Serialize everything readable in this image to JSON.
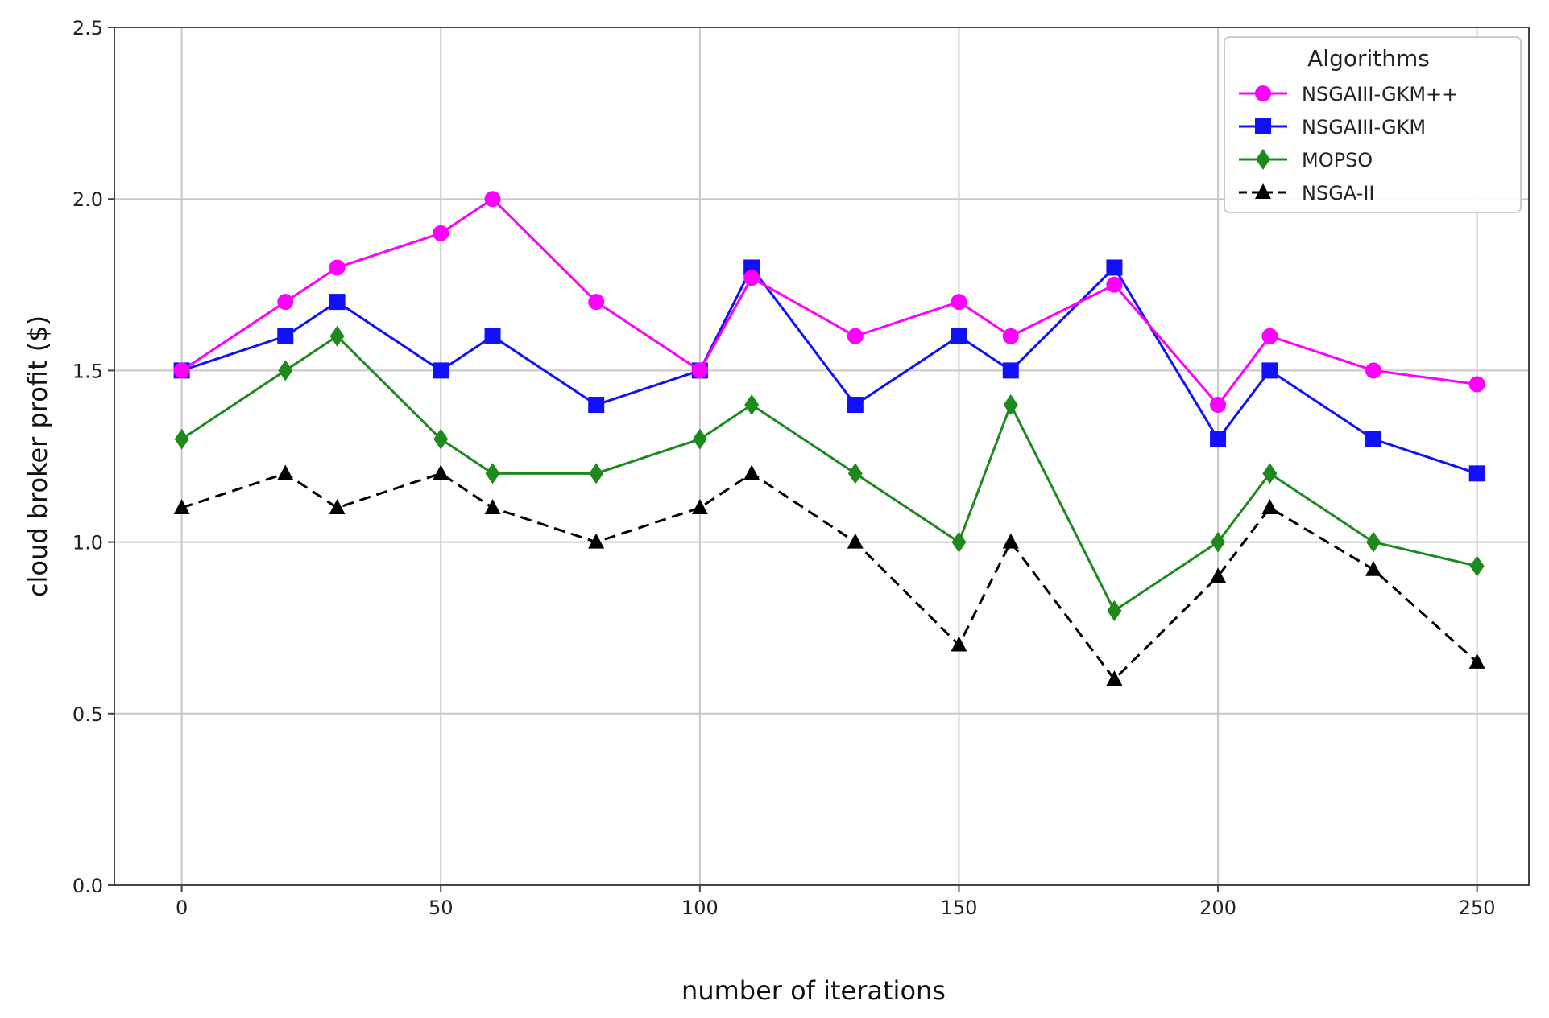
{
  "chart_data": {
    "type": "line",
    "xlabel": "number of iterations",
    "ylabel": "cloud broker profit ($)",
    "xlim": [
      -13,
      260
    ],
    "ylim": [
      0.0,
      2.5
    ],
    "xticks": [
      0,
      50,
      100,
      150,
      200,
      250
    ],
    "yticks": [
      0.0,
      0.5,
      1.0,
      1.5,
      2.0,
      2.5
    ],
    "xtick_labels": [
      "0",
      "50",
      "100",
      "150",
      "200",
      "250"
    ],
    "ytick_labels": [
      "0.0",
      "0.5",
      "1.0",
      "1.5",
      "2.0",
      "2.5"
    ],
    "grid": true,
    "legend": {
      "title": "Algorithms",
      "position": "top-right"
    },
    "x": [
      0,
      20,
      30,
      50,
      60,
      80,
      100,
      110,
      130,
      150,
      160,
      180,
      200,
      210,
      230,
      250
    ],
    "series": [
      {
        "name": "NSGAIII-GKM++",
        "color": "#ff00ff",
        "marker": "circle",
        "dashed": false,
        "values": [
          1.5,
          1.7,
          1.8,
          1.9,
          2.0,
          1.7,
          1.5,
          1.77,
          1.6,
          1.7,
          1.6,
          1.75,
          1.4,
          1.6,
          1.5,
          1.46
        ]
      },
      {
        "name": "NSGAIII-GKM",
        "color": "#1010ff",
        "marker": "square",
        "dashed": false,
        "values": [
          1.5,
          1.6,
          1.7,
          1.5,
          1.6,
          1.4,
          1.5,
          1.8,
          1.4,
          1.6,
          1.5,
          1.8,
          1.3,
          1.5,
          1.3,
          1.2
        ]
      },
      {
        "name": "MOPSO",
        "color": "#1e8a1e",
        "marker": "diamond",
        "dashed": false,
        "values": [
          1.3,
          1.5,
          1.6,
          1.3,
          1.2,
          1.2,
          1.3,
          1.4,
          1.2,
          1.0,
          1.4,
          0.8,
          1.0,
          1.2,
          1.0,
          0.93
        ]
      },
      {
        "name": "NSGA-II",
        "color": "#000000",
        "marker": "triangle",
        "dashed": true,
        "values": [
          1.1,
          1.2,
          1.1,
          1.2,
          1.1,
          1.0,
          1.1,
          1.2,
          1.0,
          0.7,
          1.0,
          0.6,
          0.9,
          1.1,
          0.92,
          0.65
        ]
      }
    ]
  }
}
